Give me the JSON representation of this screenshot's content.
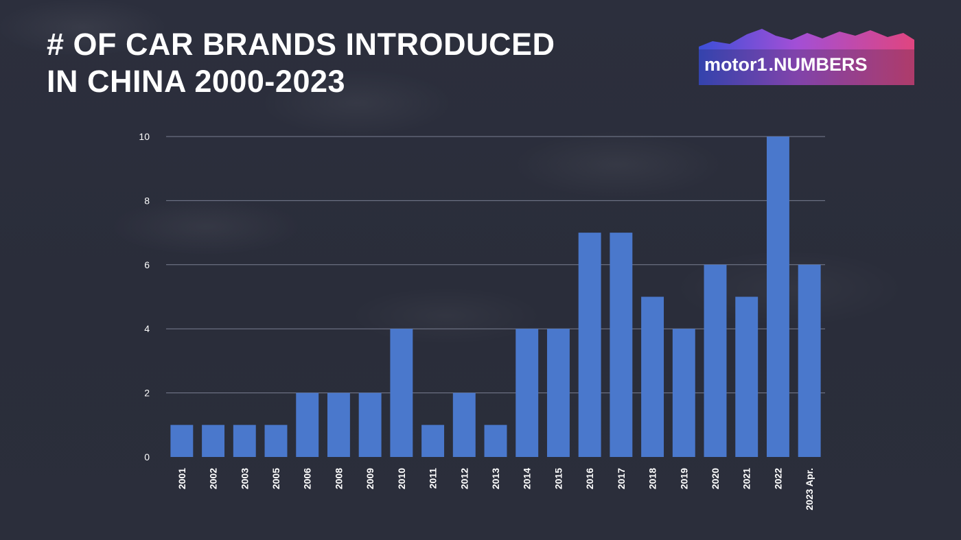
{
  "title_line1": "# OF CAR BRANDS INTRODUCED",
  "title_line2": "IN CHINA 2000-2023",
  "logo": {
    "motor": "motor",
    "one": "1",
    "numbers": ".NUMBERS"
  },
  "colors": {
    "bar": "#4a78cc",
    "grid": "#8d93a8",
    "background": "#2a2d3a"
  },
  "chart_data": {
    "type": "bar",
    "categories": [
      "2001",
      "2002",
      "2003",
      "2005",
      "2006",
      "2008",
      "2009",
      "2010",
      "2011",
      "2012",
      "2013",
      "2014",
      "2015",
      "2016",
      "2017",
      "2018",
      "2019",
      "2020",
      "2021",
      "2022",
      "2023 Apr."
    ],
    "values": [
      1,
      1,
      1,
      1,
      2,
      2,
      2,
      4,
      1,
      2,
      1,
      4,
      4,
      7,
      7,
      5,
      4,
      6,
      5,
      10,
      6
    ],
    "yticks": [
      0,
      2,
      4,
      6,
      8,
      10
    ],
    "ylim": [
      0,
      10
    ],
    "grid": true,
    "xlabel": "",
    "ylabel": ""
  }
}
